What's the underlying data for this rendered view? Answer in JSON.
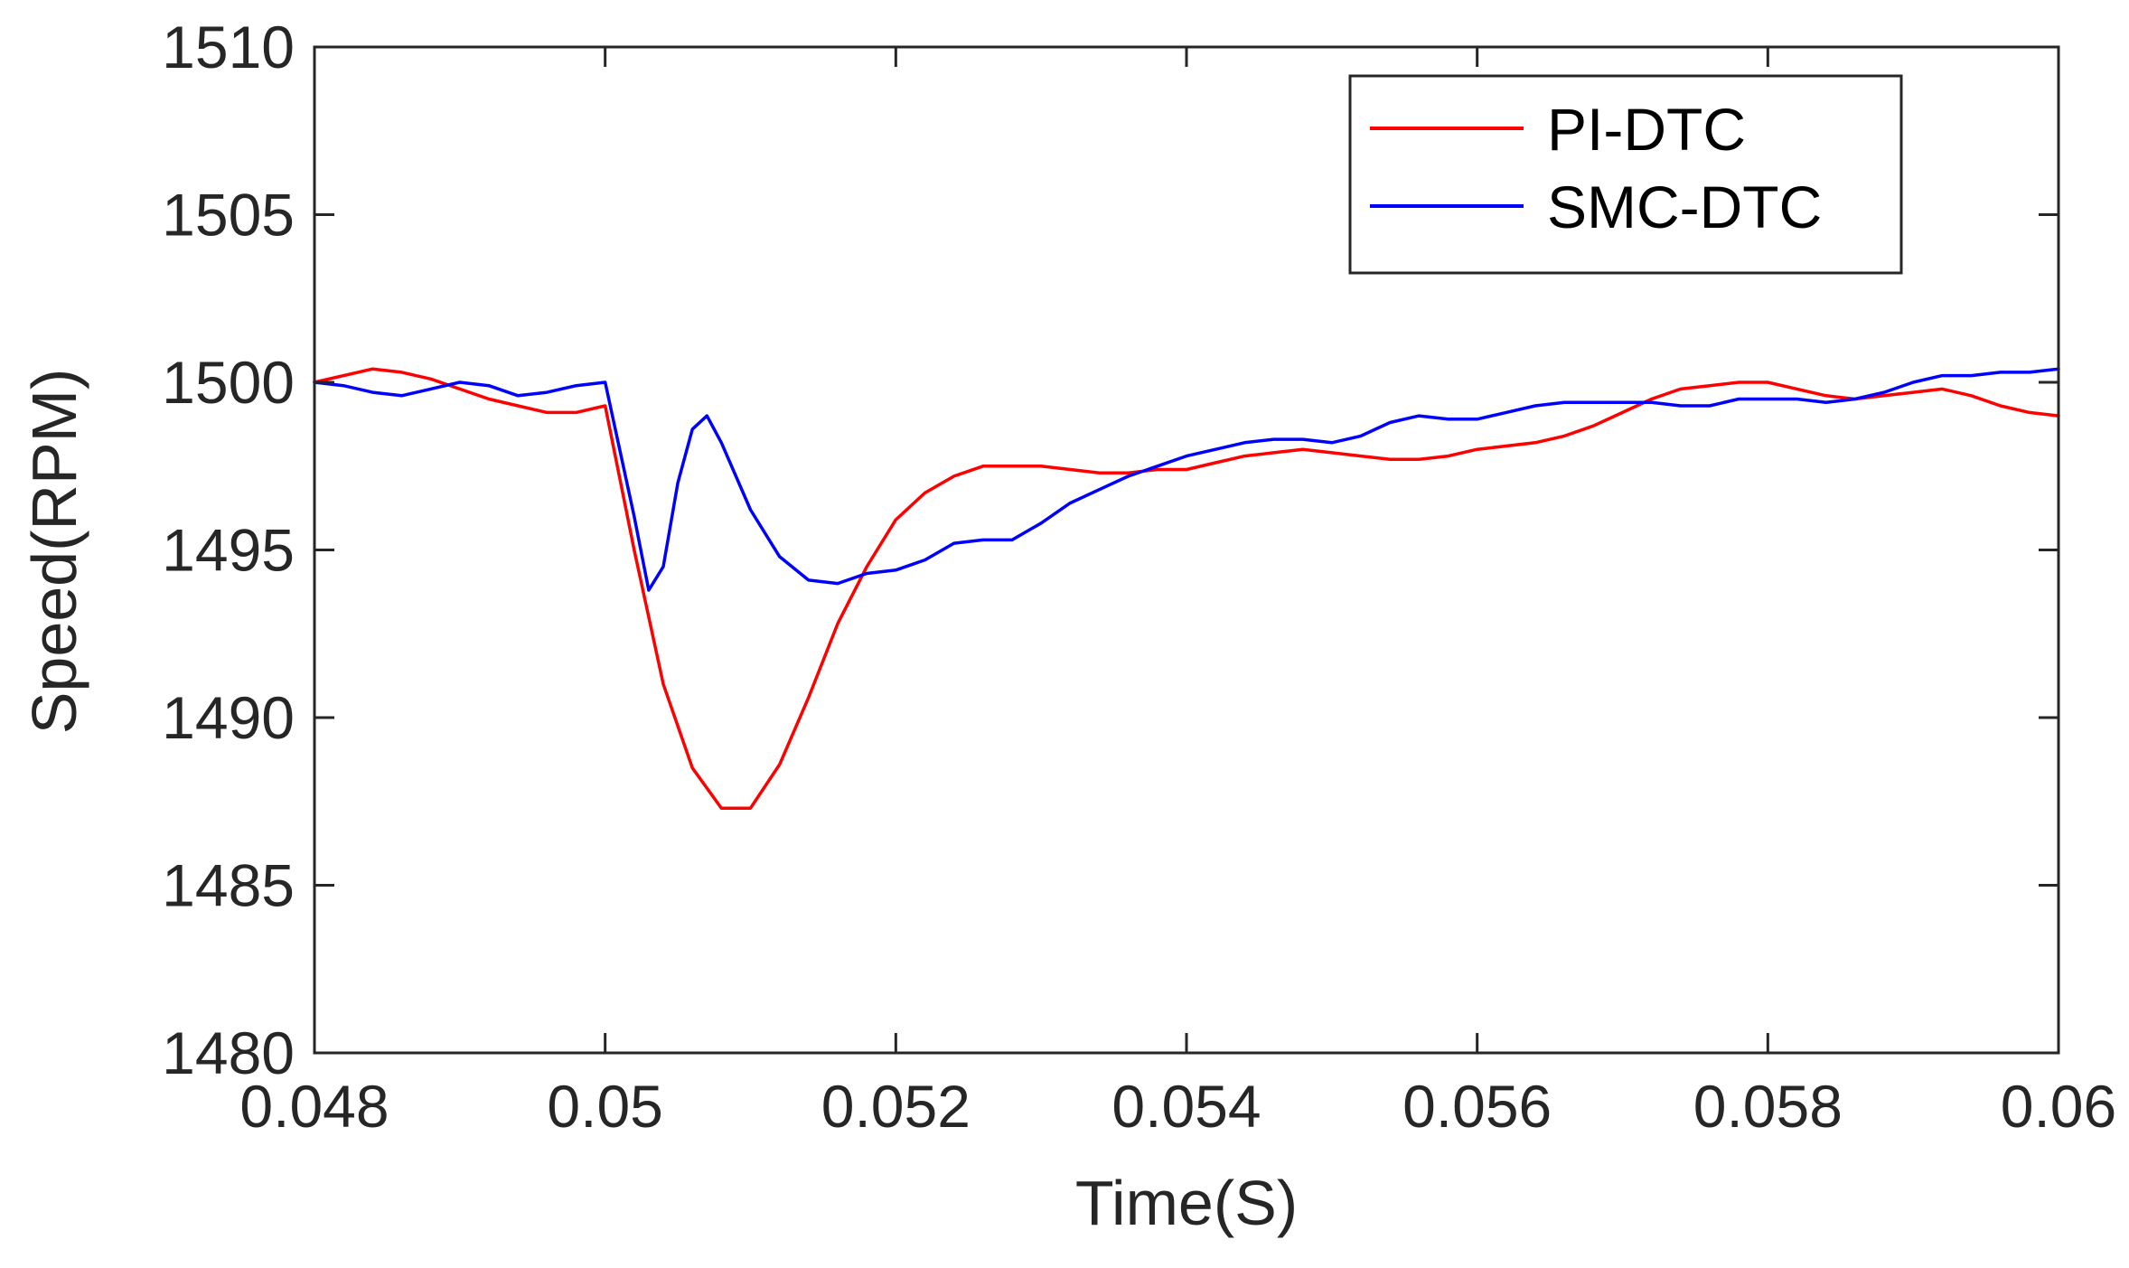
{
  "chart_data": {
    "type": "line",
    "title": "",
    "xlabel": "Time(S)",
    "ylabel": "Speed(RPM)",
    "xlim": [
      0.048,
      0.06
    ],
    "ylim": [
      1480,
      1510
    ],
    "xticks": [
      0.048,
      0.05,
      0.052,
      0.054,
      0.056,
      0.058,
      0.06
    ],
    "xtick_labels": [
      "0.048",
      "0.05",
      "0.052",
      "0.054",
      "0.056",
      "0.058",
      "0.06"
    ],
    "yticks": [
      1480,
      1485,
      1490,
      1495,
      1500,
      1505,
      1510
    ],
    "ytick_labels": [
      "1480",
      "1485",
      "1490",
      "1495",
      "1500",
      "1505",
      "1510"
    ],
    "grid": false,
    "legend_position": "top-right",
    "series": [
      {
        "name": "PI-DTC",
        "color": "#ff0000",
        "x": [
          0.048,
          0.0482,
          0.0484,
          0.0486,
          0.0488,
          0.049,
          0.0492,
          0.0494,
          0.0496,
          0.0498,
          0.05,
          0.0502,
          0.0504,
          0.0506,
          0.0508,
          0.051,
          0.0512,
          0.0514,
          0.0516,
          0.0518,
          0.052,
          0.0522,
          0.0524,
          0.0526,
          0.0528,
          0.053,
          0.0532,
          0.0534,
          0.0536,
          0.0538,
          0.054,
          0.0542,
          0.0544,
          0.0546,
          0.0548,
          0.055,
          0.0552,
          0.0554,
          0.0556,
          0.0558,
          0.056,
          0.0562,
          0.0564,
          0.0566,
          0.0568,
          0.057,
          0.0572,
          0.0574,
          0.0576,
          0.0578,
          0.058,
          0.0582,
          0.0584,
          0.0586,
          0.0588,
          0.059,
          0.0592,
          0.0594,
          0.0596,
          0.0598,
          0.06
        ],
        "y": [
          1500.0,
          1500.2,
          1500.4,
          1500.3,
          1500.1,
          1499.8,
          1499.5,
          1499.3,
          1499.1,
          1499.1,
          1499.3,
          1495.0,
          1491.0,
          1488.5,
          1487.3,
          1487.3,
          1488.6,
          1490.6,
          1492.8,
          1494.5,
          1495.9,
          1496.7,
          1497.2,
          1497.5,
          1497.5,
          1497.5,
          1497.4,
          1497.3,
          1497.3,
          1497.4,
          1497.4,
          1497.6,
          1497.8,
          1497.9,
          1498.0,
          1497.9,
          1497.8,
          1497.7,
          1497.7,
          1497.8,
          1498.0,
          1498.1,
          1498.2,
          1498.4,
          1498.7,
          1499.1,
          1499.5,
          1499.8,
          1499.9,
          1500.0,
          1500.0,
          1499.8,
          1499.6,
          1499.5,
          1499.6,
          1499.7,
          1499.8,
          1499.6,
          1499.3,
          1499.1,
          1499.0
        ]
      },
      {
        "name": "SMC-DTC",
        "color": "#0000ff",
        "x": [
          0.048,
          0.0482,
          0.0484,
          0.0486,
          0.0488,
          0.049,
          0.0492,
          0.0494,
          0.0496,
          0.0498,
          0.05,
          0.0502,
          0.0503,
          0.0504,
          0.0505,
          0.0506,
          0.0507,
          0.0508,
          0.051,
          0.0512,
          0.0514,
          0.0516,
          0.0518,
          0.052,
          0.0522,
          0.0524,
          0.0526,
          0.0528,
          0.053,
          0.0532,
          0.0534,
          0.0536,
          0.0538,
          0.054,
          0.0542,
          0.0544,
          0.0546,
          0.0548,
          0.055,
          0.0552,
          0.0554,
          0.0556,
          0.0558,
          0.056,
          0.0562,
          0.0564,
          0.0566,
          0.0568,
          0.057,
          0.0572,
          0.0574,
          0.0576,
          0.0578,
          0.058,
          0.0582,
          0.0584,
          0.0586,
          0.0588,
          0.059,
          0.0592,
          0.0594,
          0.0596,
          0.0598,
          0.06
        ],
        "y": [
          1500.0,
          1499.9,
          1499.7,
          1499.6,
          1499.8,
          1500.0,
          1499.9,
          1499.6,
          1499.7,
          1499.9,
          1500.0,
          1496.0,
          1493.8,
          1494.5,
          1497.0,
          1498.6,
          1499.0,
          1498.2,
          1496.2,
          1494.8,
          1494.1,
          1494.0,
          1494.3,
          1494.4,
          1494.7,
          1495.2,
          1495.3,
          1495.3,
          1495.8,
          1496.4,
          1496.8,
          1497.2,
          1497.5,
          1497.8,
          1498.0,
          1498.2,
          1498.3,
          1498.3,
          1498.2,
          1498.4,
          1498.8,
          1499.0,
          1498.9,
          1498.9,
          1499.1,
          1499.3,
          1499.4,
          1499.4,
          1499.4,
          1499.4,
          1499.3,
          1499.3,
          1499.5,
          1499.5,
          1499.5,
          1499.4,
          1499.5,
          1499.7,
          1500.0,
          1500.2,
          1500.2,
          1500.3,
          1500.3,
          1500.4
        ]
      }
    ]
  }
}
